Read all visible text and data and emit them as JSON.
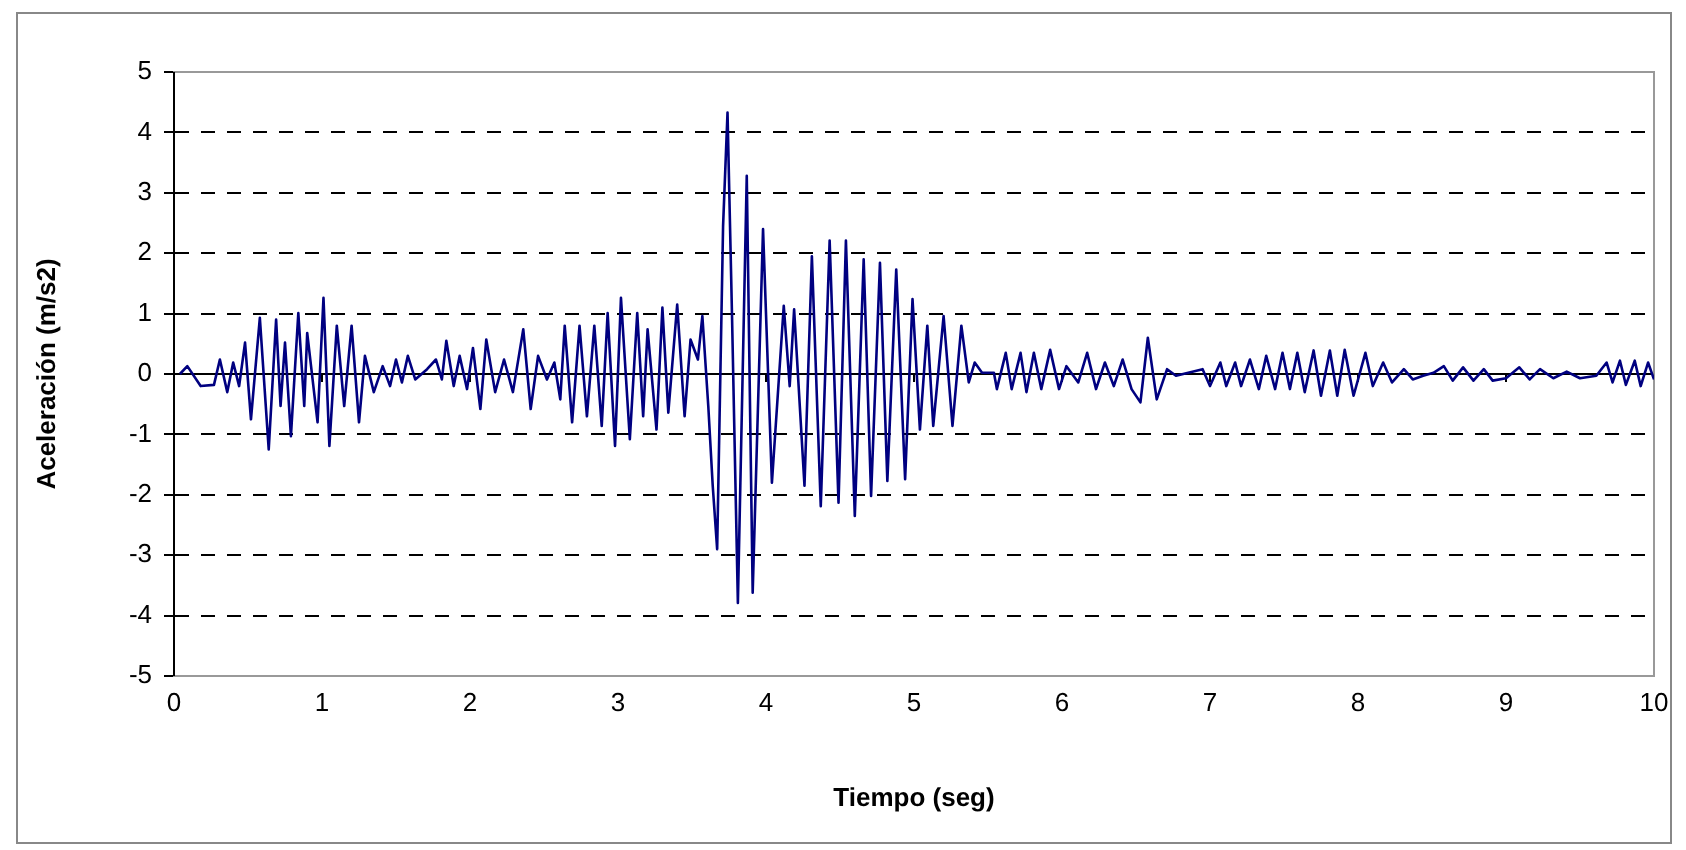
{
  "chart_data": {
    "type": "line",
    "xlabel": "Tiempo (seg)",
    "ylabel": "Aceleración (m/s2)",
    "xlim": [
      0,
      10
    ],
    "xticks": [
      0,
      1,
      2,
      3,
      4,
      5,
      6,
      7,
      8,
      9,
      10
    ],
    "ylim": [
      -5,
      5
    ],
    "yticks": [
      -5,
      -4,
      -3,
      -2,
      -1,
      0,
      1,
      2,
      3,
      4,
      5
    ],
    "grid": "y",
    "legend": false,
    "marker": "none",
    "line_style": "solid",
    "series": [
      {
        "color": "#000080",
        "x": [
          0.04,
          0.09,
          0.18,
          0.27,
          0.31,
          0.36,
          0.4,
          0.44,
          0.48,
          0.52,
          0.58,
          0.64,
          0.69,
          0.72,
          0.75,
          0.79,
          0.84,
          0.88,
          0.9,
          0.97,
          1.01,
          1.05,
          1.1,
          1.15,
          1.2,
          1.25,
          1.29,
          1.35,
          1.41,
          1.46,
          1.5,
          1.54,
          1.58,
          1.63,
          1.71,
          1.77,
          1.81,
          1.84,
          1.89,
          1.93,
          1.98,
          2.02,
          2.07,
          2.11,
          2.17,
          2.23,
          2.29,
          2.36,
          2.41,
          2.46,
          2.52,
          2.57,
          2.61,
          2.64,
          2.69,
          2.74,
          2.79,
          2.84,
          2.89,
          2.93,
          2.98,
          3.02,
          3.08,
          3.13,
          3.17,
          3.2,
          3.26,
          3.3,
          3.34,
          3.4,
          3.45,
          3.49,
          3.54,
          3.57,
          3.61,
          3.64,
          3.67,
          3.71,
          3.74,
          3.77,
          3.81,
          3.87,
          3.91,
          3.98,
          4.04,
          4.12,
          4.16,
          4.19,
          4.26,
          4.31,
          4.37,
          4.43,
          4.49,
          4.54,
          4.6,
          4.66,
          4.71,
          4.77,
          4.82,
          4.88,
          4.94,
          4.99,
          5.04,
          5.09,
          5.13,
          5.2,
          5.26,
          5.32,
          5.37,
          5.41,
          5.46,
          5.54,
          5.56,
          5.62,
          5.66,
          5.72,
          5.76,
          5.81,
          5.86,
          5.92,
          5.98,
          6.03,
          6.11,
          6.17,
          6.23,
          6.29,
          6.35,
          6.41,
          6.47,
          6.53,
          6.58,
          6.64,
          6.71,
          6.77,
          6.95,
          7.0,
          7.07,
          7.11,
          7.17,
          7.21,
          7.27,
          7.33,
          7.38,
          7.44,
          7.49,
          7.54,
          7.59,
          7.64,
          7.7,
          7.75,
          7.81,
          7.86,
          7.91,
          7.97,
          8.05,
          8.1,
          8.17,
          8.23,
          8.31,
          8.37,
          8.44,
          8.51,
          8.58,
          8.64,
          8.71,
          8.78,
          8.85,
          8.91,
          9.0,
          9.09,
          9.16,
          9.23,
          9.32,
          9.41,
          9.5,
          9.61,
          9.68,
          9.72,
          9.77,
          9.81,
          9.87,
          9.91,
          9.96,
          10
        ],
        "values": [
          0,
          0.13,
          -0.2,
          -0.18,
          0.24,
          -0.3,
          0.19,
          -0.2,
          0.52,
          -0.75,
          0.93,
          -1.25,
          0.9,
          -0.53,
          0.52,
          -1.03,
          1.01,
          -0.53,
          0.68,
          -0.8,
          1.26,
          -1.19,
          0.8,
          -0.53,
          0.8,
          -0.8,
          0.3,
          -0.3,
          0.13,
          -0.2,
          0.24,
          -0.14,
          0.3,
          -0.09,
          0.08,
          0.24,
          -0.09,
          0.55,
          -0.2,
          0.3,
          -0.25,
          0.43,
          -0.58,
          0.57,
          -0.3,
          0.24,
          -0.3,
          0.74,
          -0.58,
          0.3,
          -0.09,
          0.19,
          -0.42,
          0.8,
          -0.8,
          0.8,
          -0.7,
          0.8,
          -0.86,
          1.01,
          -1.19,
          1.26,
          -1.08,
          1.01,
          -0.7,
          0.74,
          -0.92,
          1.1,
          -0.64,
          1.15,
          -0.7,
          0.57,
          0.24,
          0.96,
          -0.53,
          -1.85,
          -2.9,
          2.45,
          4.33,
          1.01,
          -3.79,
          3.28,
          -3.62,
          2.4,
          -1.8,
          1.13,
          -0.2,
          1.07,
          -1.85,
          1.95,
          -2.19,
          2.21,
          -2.13,
          2.21,
          -2.35,
          1.9,
          -2.02,
          1.84,
          -1.77,
          1.73,
          -1.74,
          1.24,
          -0.92,
          0.8,
          -0.86,
          0.96,
          -0.86,
          0.8,
          -0.14,
          0.19,
          0.02,
          0.02,
          -0.25,
          0.35,
          -0.25,
          0.35,
          -0.3,
          0.35,
          -0.25,
          0.4,
          -0.25,
          0.13,
          -0.14,
          0.35,
          -0.25,
          0.19,
          -0.2,
          0.24,
          -0.25,
          -0.47,
          0.6,
          -0.42,
          0.08,
          -0.03,
          0.08,
          -0.2,
          0.19,
          -0.2,
          0.19,
          -0.2,
          0.24,
          -0.25,
          0.3,
          -0.25,
          0.35,
          -0.25,
          0.35,
          -0.3,
          0.39,
          -0.36,
          0.39,
          -0.36,
          0.4,
          -0.36,
          0.35,
          -0.2,
          0.19,
          -0.14,
          0.08,
          -0.09,
          -0.03,
          0.02,
          0.13,
          -0.11,
          0.11,
          -0.11,
          0.08,
          -0.11,
          -0.07,
          0.11,
          -0.09,
          0.08,
          -0.07,
          0.04,
          -0.07,
          -0.03,
          0.19,
          -0.14,
          0.22,
          -0.18,
          0.22,
          -0.2,
          0.19,
          -0.09
        ]
      }
    ]
  }
}
